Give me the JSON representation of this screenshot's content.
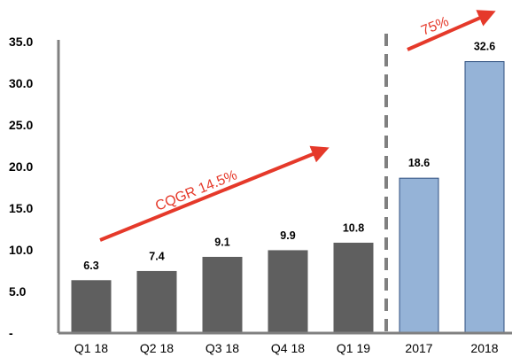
{
  "chart_data": {
    "type": "bar",
    "categories": [
      "Q1 18",
      "Q2 18",
      "Q3 18",
      "Q4 18",
      "Q1 19",
      "2017",
      "2018"
    ],
    "values": [
      6.3,
      7.4,
      9.1,
      9.9,
      10.8,
      18.6,
      32.6
    ],
    "value_labels": [
      "6.3",
      "7.4",
      "9.1",
      "9.9",
      "10.8",
      "18.6",
      "32.6"
    ],
    "bar_colors": [
      "#5f5f5f",
      "#5f5f5f",
      "#5f5f5f",
      "#5f5f5f",
      "#5f5f5f",
      "#95b3d7",
      "#95b3d7"
    ],
    "bar_edge_colors": [
      "#5f5f5f",
      "#5f5f5f",
      "#5f5f5f",
      "#5f5f5f",
      "#5f5f5f",
      "#2f4f7f",
      "#2f4f7f"
    ],
    "y_ticks": [
      "-",
      "5.0",
      "10.0",
      "15.0",
      "20.0",
      "25.0",
      "30.0",
      "35.0"
    ],
    "ylim": [
      0,
      35
    ],
    "grid": false,
    "divider_after_category": "Q1 19",
    "annotations": [
      {
        "text": "CQGR 14.5%",
        "color": "#e5392a"
      },
      {
        "text": "75%",
        "color": "#e5392a"
      }
    ],
    "axis_color": "#808080",
    "divider_color": "#808080"
  }
}
